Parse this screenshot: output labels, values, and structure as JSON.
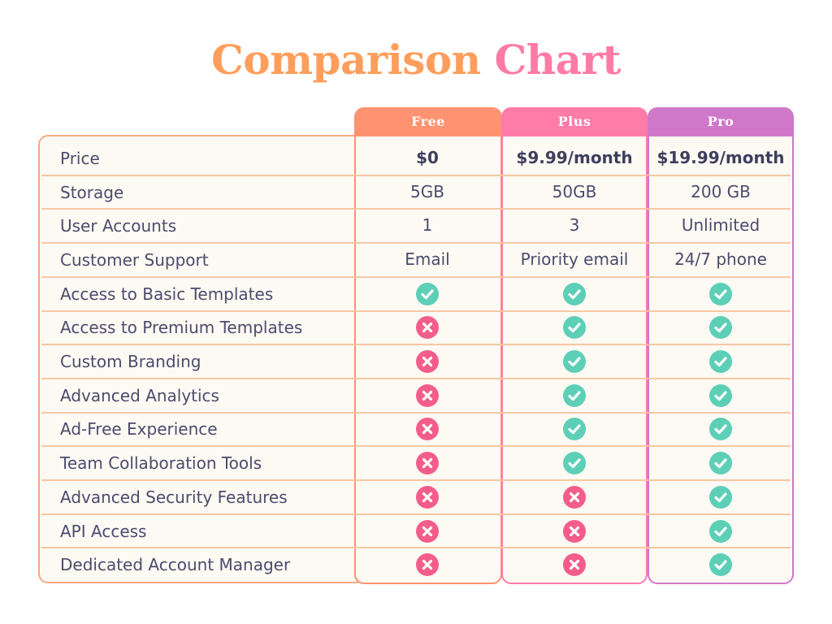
{
  "title": {
    "word1": "Comparison",
    "word2": "Chart"
  },
  "colors": {
    "free": "#ff9270",
    "plus": "#ff7ba8",
    "pro": "#cf78c9",
    "check": "#5dcfb7",
    "cross": "#f35d8c"
  },
  "chart_data": {
    "type": "table",
    "columns": [
      "Free",
      "Plus",
      "Pro"
    ],
    "rows": [
      {
        "label": "Price",
        "values": [
          "$0",
          "$9.99/month",
          "$19.99/month"
        ]
      },
      {
        "label": "Storage",
        "values": [
          "5GB",
          "50GB",
          "200 GB"
        ]
      },
      {
        "label": "User Accounts",
        "values": [
          "1",
          "3",
          "Unlimited"
        ]
      },
      {
        "label": "Customer Support",
        "values": [
          "Email",
          "Priority email",
          "24/7 phone"
        ]
      },
      {
        "label": "Access to Basic Templates",
        "values": [
          true,
          true,
          true
        ]
      },
      {
        "label": "Access to Premium Templates",
        "values": [
          false,
          true,
          true
        ]
      },
      {
        "label": "Custom Branding",
        "values": [
          false,
          true,
          true
        ]
      },
      {
        "label": "Advanced Analytics",
        "values": [
          false,
          true,
          true
        ]
      },
      {
        "label": "Ad-Free Experience",
        "values": [
          false,
          true,
          true
        ]
      },
      {
        "label": "Team Collaboration Tools",
        "values": [
          false,
          true,
          true
        ]
      },
      {
        "label": "Advanced Security Features",
        "values": [
          false,
          false,
          true
        ]
      },
      {
        "label": "API Access",
        "values": [
          false,
          false,
          true
        ]
      },
      {
        "label": "Dedicated Account Manager",
        "values": [
          false,
          false,
          true
        ]
      }
    ]
  }
}
